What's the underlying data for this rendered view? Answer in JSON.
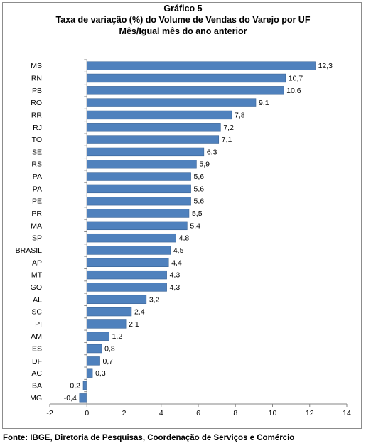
{
  "chart_data": {
    "type": "bar",
    "orientation": "horizontal",
    "title": "Gráfico 5",
    "subtitle": [
      "Taxa de variação (%) do Volume de Vendas do Varejo por UF",
      "Mês/Igual mês do ano anterior"
    ],
    "categories": [
      "MS",
      "RN",
      "PB",
      "RO",
      "RR",
      "RJ",
      "TO",
      "SE",
      "RS",
      "PA",
      "PA",
      "PE",
      "PR",
      "MA",
      "SP",
      "BRASIL",
      "AP",
      "MT",
      "GO",
      "AL",
      "SC",
      "PI",
      "AM",
      "ES",
      "DF",
      "AC",
      "BA",
      "MG"
    ],
    "values": [
      12.3,
      10.7,
      10.6,
      9.1,
      7.8,
      7.2,
      7.1,
      6.3,
      5.9,
      5.6,
      5.6,
      5.6,
      5.5,
      5.4,
      4.8,
      4.5,
      4.4,
      4.3,
      4.3,
      3.2,
      2.4,
      2.1,
      1.2,
      0.8,
      0.7,
      0.3,
      -0.2,
      -0.4
    ],
    "data_labels": [
      "12,3",
      "10,7",
      "10,6",
      "9,1",
      "7,8",
      "7,2",
      "7,1",
      "6,3",
      "5,9",
      "5,6",
      "5,6",
      "5,6",
      "5,5",
      "5,4",
      "4,8",
      "4,5",
      "4,4",
      "4,3",
      "4,3",
      "3,2",
      "2,4",
      "2,1",
      "1,2",
      "0,8",
      "0,7",
      "0,3",
      "-0,2",
      "-0,4"
    ],
    "xlim": [
      -2,
      14
    ],
    "xticks": [
      "-2",
      "0",
      "2",
      "4",
      "6",
      "8",
      "10",
      "12",
      "14"
    ],
    "grid": false,
    "bar_color": "#4f81bd",
    "bar_border": "#3a6496"
  },
  "source": "Fonte: IBGE, Diretoria de Pesquisas,  Coordenação de Serviços e Comércio"
}
